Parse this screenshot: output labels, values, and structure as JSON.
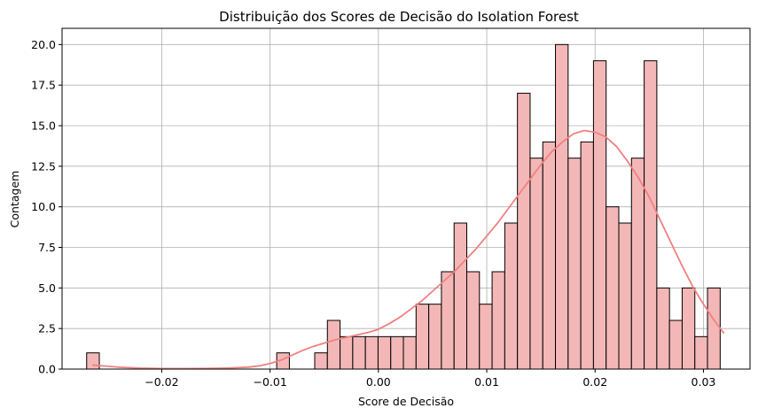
{
  "chart_data": {
    "type": "bar",
    "subtype": "histogram-with-kde",
    "title": "Distribuição dos Scores de Decisão do Isolation Forest",
    "xlabel": "Score de Decisão",
    "ylabel": "Contagem",
    "xlim": [
      -0.0292,
      0.0343
    ],
    "ylim": [
      0,
      21
    ],
    "grid": true,
    "bin_start": -0.02693,
    "bin_width": 0.0011695,
    "x_ticks": [
      -0.02,
      -0.01,
      0.0,
      0.01,
      0.02,
      0.03
    ],
    "x_tick_labels": [
      "−0.02",
      "−0.01",
      "0.00",
      "0.01",
      "0.02",
      "0.03"
    ],
    "y_ticks": [
      0,
      2.5,
      5,
      7.5,
      10,
      12.5,
      15,
      17.5,
      20
    ],
    "y_tick_labels": [
      "0.0",
      "2.5",
      "5.0",
      "7.5",
      "10.0",
      "12.5",
      "15.0",
      "17.5",
      "20.0"
    ],
    "series": [
      {
        "kind": "histogram",
        "color": "#f4b7b7",
        "edgecolor": "#000000",
        "counts": [
          1,
          0,
          0,
          0,
          0,
          0,
          0,
          0,
          0,
          0,
          0,
          0,
          0,
          0,
          0,
          1,
          0,
          0,
          1,
          3,
          2,
          2,
          2,
          2,
          2,
          2,
          4,
          4,
          6,
          9,
          6,
          4,
          6,
          9,
          17,
          13,
          14,
          20,
          13,
          14,
          19,
          10,
          9,
          13,
          19,
          5,
          3,
          5,
          2,
          5
        ]
      },
      {
        "kind": "kde",
        "color": "#f08080",
        "x": [
          -0.0264,
          -0.024,
          -0.022,
          -0.02,
          -0.018,
          -0.016,
          -0.014,
          -0.012,
          -0.011,
          -0.01,
          -0.009,
          -0.008,
          -0.007,
          -0.006,
          -0.005,
          -0.004,
          -0.003,
          -0.002,
          -0.001,
          0.0,
          0.001,
          0.002,
          0.003,
          0.004,
          0.005,
          0.006,
          0.007,
          0.008,
          0.009,
          0.01,
          0.011,
          0.012,
          0.013,
          0.014,
          0.015,
          0.016,
          0.017,
          0.018,
          0.019,
          0.02,
          0.021,
          0.022,
          0.023,
          0.024,
          0.025,
          0.026,
          0.027,
          0.028,
          0.029,
          0.03,
          0.031,
          0.0319
        ],
        "y": [
          0.25,
          0.12,
          0.06,
          0.03,
          0.03,
          0.04,
          0.06,
          0.12,
          0.2,
          0.35,
          0.55,
          0.85,
          1.15,
          1.4,
          1.6,
          1.8,
          1.95,
          2.1,
          2.25,
          2.45,
          2.8,
          3.2,
          3.7,
          4.2,
          4.8,
          5.4,
          6.0,
          6.7,
          7.4,
          8.2,
          9.0,
          9.9,
          10.8,
          11.7,
          12.6,
          13.4,
          14.0,
          14.5,
          14.7,
          14.6,
          14.3,
          13.7,
          12.8,
          11.8,
          10.6,
          9.2,
          7.8,
          6.4,
          5.1,
          4.0,
          3.0,
          2.2
        ]
      }
    ]
  }
}
